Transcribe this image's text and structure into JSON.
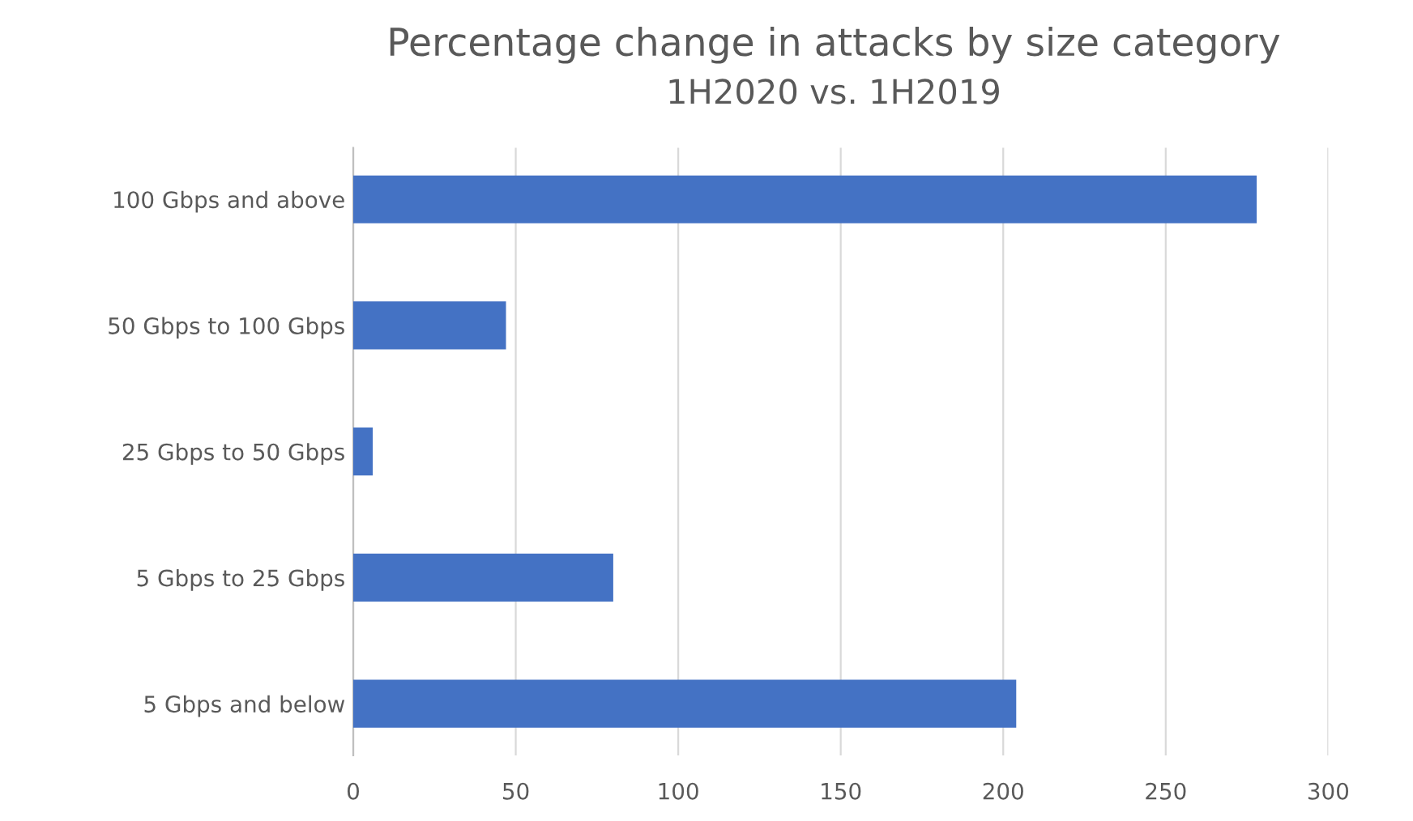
{
  "chart_data": {
    "type": "bar",
    "orientation": "horizontal",
    "title": "Percentage change in attacks by size category",
    "subtitle": "1H2020 vs. 1H2019",
    "categories": [
      "100 Gbps and above",
      "50 Gbps to 100 Gbps",
      "25 Gbps to 50 Gbps",
      "5 Gbps to 25 Gbps",
      "5 Gbps and below"
    ],
    "values": [
      278,
      47,
      6,
      80,
      204
    ],
    "color": "#4472c4",
    "xlim": [
      0,
      300
    ],
    "xticks": [
      0,
      50,
      100,
      150,
      200,
      250,
      300
    ],
    "grid": "x"
  }
}
